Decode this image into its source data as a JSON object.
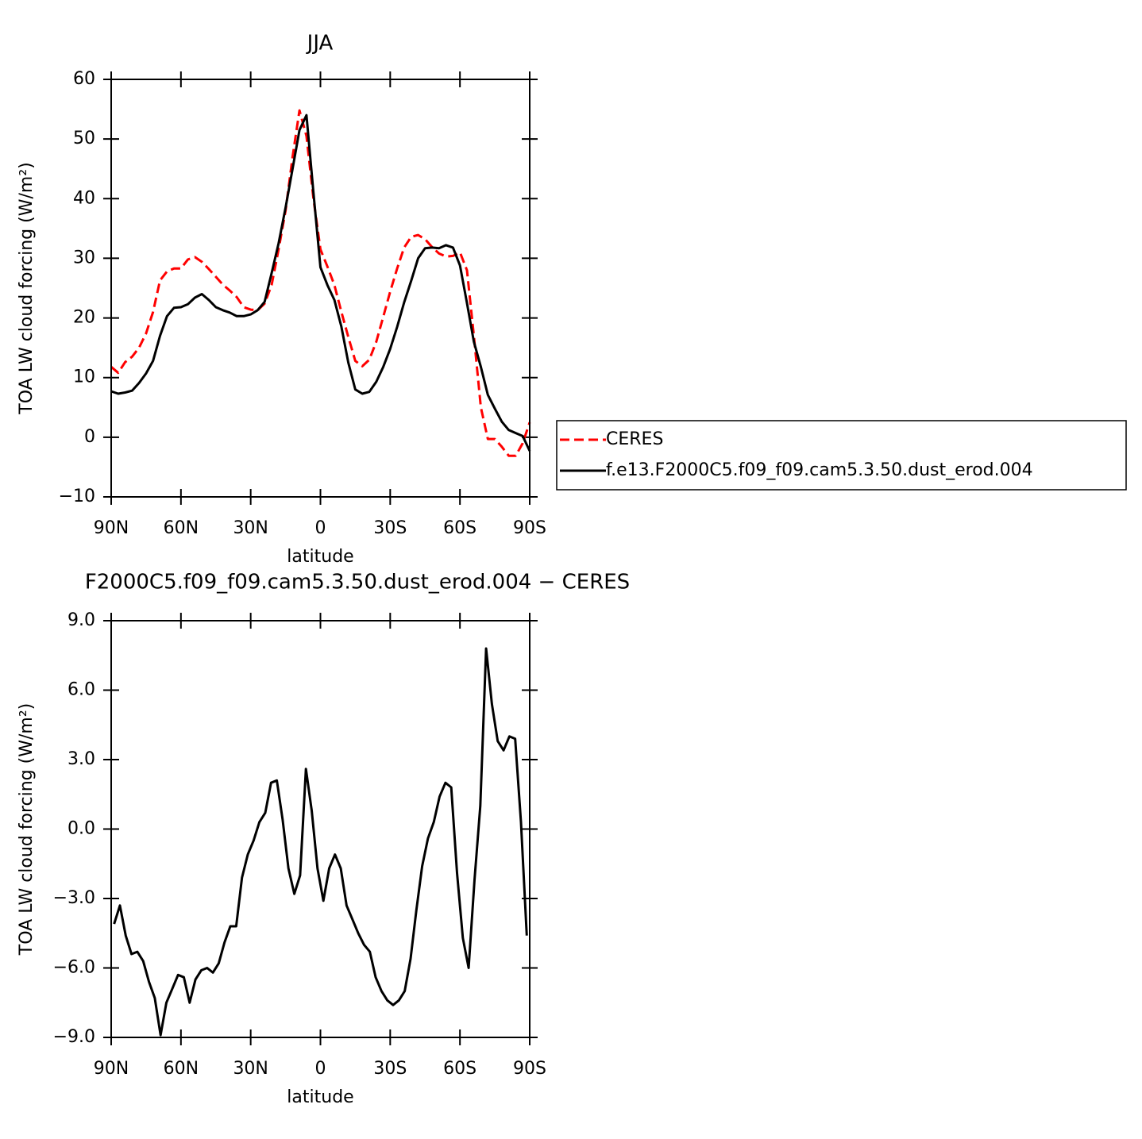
{
  "chart_data": [
    {
      "type": "line",
      "title": "JJA",
      "xlabel": "latitude",
      "ylabel": "TOA LW cloud forcing (W/m²)",
      "x": [
        90,
        87,
        84,
        81,
        78,
        75,
        72,
        69,
        66,
        63,
        60,
        57,
        54,
        51,
        48,
        45,
        42,
        39,
        36,
        33,
        30,
        27,
        24,
        21,
        18,
        15,
        12,
        9,
        6,
        3,
        0,
        -3,
        -6,
        -9,
        -12,
        -15,
        -18,
        -21,
        -24,
        -27,
        -30,
        -33,
        -36,
        -39,
        -42,
        -45,
        -48,
        -51,
        -54,
        -57,
        -60,
        -63,
        -66,
        -69,
        -72,
        -75,
        -78,
        -81,
        -84,
        -87,
        -90
      ],
      "series": [
        {
          "name": "CERES",
          "color": "#ff0000",
          "linestyle": "dashed",
          "values": [
            11.8,
            10.8,
            12.6,
            13.5,
            15,
            17.4,
            21,
            26.3,
            27.8,
            28.3,
            28.3,
            29.8,
            30.2,
            29.4,
            28.2,
            26.9,
            25.6,
            24.6,
            23.5,
            21.8,
            21.4,
            21.3,
            22.4,
            25.5,
            31.5,
            38,
            47,
            54.8,
            50.5,
            40,
            31.5,
            28.6,
            25.5,
            21,
            16.8,
            12.8,
            11.9,
            13,
            16,
            20.2,
            24.4,
            28.3,
            31.8,
            33.6,
            33.9,
            33.2,
            31.9,
            30.8,
            30.3,
            30.4,
            31,
            28,
            17,
            5,
            -0.3,
            -0.3,
            -1.6,
            -3.1,
            -3.1,
            -1,
            2.5
          ]
        },
        {
          "name": "f.e13.F2000C5.f09_f09.cam5.3.50.dust_erod.004",
          "color": "#000000",
          "linestyle": "solid",
          "values": [
            7.7,
            7.3,
            7.5,
            7.8,
            9.1,
            10.7,
            12.8,
            17,
            20.3,
            21.7,
            21.8,
            22.3,
            23.4,
            24,
            23,
            21.8,
            21.3,
            20.9,
            20.3,
            20.3,
            20.6,
            21.3,
            22.7,
            27.5,
            32.5,
            38.5,
            45,
            51.5,
            54,
            41,
            28.5,
            25.5,
            23,
            18.5,
            12.5,
            8,
            7.3,
            7.6,
            9.3,
            11.8,
            14.8,
            18.5,
            22.6,
            26.2,
            30,
            31.7,
            31.8,
            31.7,
            32.2,
            31.8,
            28.8,
            22.5,
            16,
            11.8,
            7.1,
            4.8,
            2.6,
            1.2,
            0.7,
            0.2,
            -2.3
          ]
        }
      ],
      "xlim": [
        90,
        -90
      ],
      "xticks": [
        {
          "value": 90,
          "label": "90N"
        },
        {
          "value": 60,
          "label": "60N"
        },
        {
          "value": 30,
          "label": "30N"
        },
        0,
        {
          "value": -30,
          "label": "30S"
        },
        {
          "value": -60,
          "label": "60S"
        },
        {
          "value": -90,
          "label": "90S"
        }
      ],
      "ylim": [
        -10,
        60
      ],
      "yticks": [
        {
          "value": -10,
          "label": "−10"
        },
        0,
        10,
        20,
        30,
        40,
        50,
        60
      ],
      "legend": "right"
    },
    {
      "type": "line",
      "title": "F2000C5.f09_f09.cam5.3.50.dust_erod.004 − CERES",
      "xlabel": "latitude",
      "ylabel": "TOA LW cloud forcing (W/m²)",
      "x": [
        88.75,
        86.25,
        83.75,
        81.25,
        78.75,
        76.25,
        73.75,
        71.25,
        68.75,
        66.25,
        63.75,
        61.25,
        58.75,
        56.25,
        53.75,
        51.25,
        48.75,
        46.25,
        43.75,
        41.25,
        38.75,
        36.25,
        33.75,
        31.25,
        28.75,
        26.25,
        23.75,
        21.25,
        18.75,
        16.25,
        13.75,
        11.25,
        8.75,
        6.25,
        3.75,
        1.25,
        -1.25,
        -3.75,
        -6.25,
        -8.75,
        -11.25,
        -13.75,
        -16.25,
        -18.75,
        -21.25,
        -23.75,
        -26.25,
        -28.75,
        -31.25,
        -33.75,
        -36.25,
        -38.75,
        -41.25,
        -43.75,
        -46.25,
        -48.75,
        -51.25,
        -53.75,
        -56.25,
        -58.75,
        -61.25,
        -63.75,
        -66.25,
        -68.75,
        -71.25,
        -73.75,
        -76.25,
        -78.75,
        -81.25,
        -83.75,
        -86.25,
        -88.75
      ],
      "series": [
        {
          "color": "#000000",
          "linestyle": "solid",
          "values": [
            -4.1,
            -3.3,
            -4.6,
            -5.4,
            -5.3,
            -5.7,
            -6.6,
            -7.3,
            -8.9,
            -7.5,
            -6.9,
            -6.3,
            -6.4,
            -7.5,
            -6.5,
            -6.1,
            -6,
            -6.2,
            -5.8,
            -4.9,
            -4.2,
            -4.2,
            -2.1,
            -1.1,
            -0.5,
            0.3,
            0.7,
            2,
            2.1,
            0.4,
            -1.7,
            -2.8,
            -2,
            2.6,
            0.8,
            -1.7,
            -3.1,
            -1.7,
            -1.1,
            -1.7,
            -3.3,
            -3.9,
            -4.5,
            -5,
            -5.3,
            -6.4,
            -7,
            -7.4,
            -7.6,
            -7.4,
            -7,
            -5.6,
            -3.5,
            -1.6,
            -0.4,
            0.3,
            1.4,
            2,
            1.8,
            -1.9,
            -4.7,
            -6,
            -2.2,
            1,
            7.8,
            5.4,
            3.8,
            3.4,
            4,
            3.9,
            0.3,
            -4.6
          ]
        }
      ],
      "xlim": [
        90,
        -90
      ],
      "xticks": [
        {
          "value": 90,
          "label": "90N"
        },
        {
          "value": 60,
          "label": "60N"
        },
        {
          "value": 30,
          "label": "30N"
        },
        0,
        {
          "value": -30,
          "label": "30S"
        },
        {
          "value": -60,
          "label": "60S"
        },
        {
          "value": -90,
          "label": "90S"
        }
      ],
      "ylim": [
        -9,
        9
      ],
      "yticks": [
        {
          "value": -9,
          "label": "−9.0"
        },
        {
          "value": -6,
          "label": "−6.0"
        },
        {
          "value": -3,
          "label": "−3.0"
        },
        {
          "value": 0,
          "label": "0.0"
        },
        {
          "value": 3,
          "label": "3.0"
        },
        {
          "value": 6,
          "label": "6.0"
        },
        {
          "value": 9,
          "label": "9.0"
        }
      ],
      "legend": false
    }
  ]
}
